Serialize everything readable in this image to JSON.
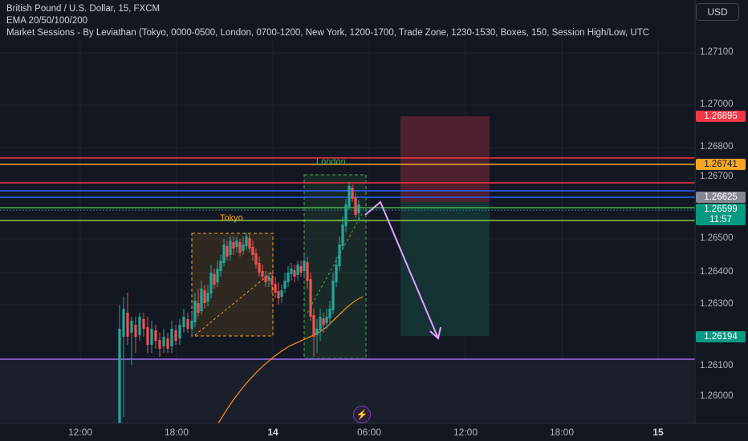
{
  "header": {
    "symbol_line": "British Pound / U.S. Dollar, 15, FXCM",
    "ema_line": "EMA 20/50/100/200",
    "sessions_line": "Market Sessions - By Leviathan (Tokyo, 0000-0500, London, 0700-1200, New York, 1200-1700, Trade Zone, 1230-1530, Boxes, 150, Session High/Low, UTC"
  },
  "currency_button": "USD",
  "price_axis": {
    "ticks": [
      "1.27100",
      "1.27000",
      "1.26800",
      "1.26700",
      "1.26500",
      "1.26400",
      "1.26300",
      "1.26100",
      "1.26000"
    ],
    "labels": [
      {
        "text": "1.26895",
        "bg": "#f23645",
        "fg": "#ffffff"
      },
      {
        "text": "1.26741",
        "bg": "#f5a623",
        "fg": "#131722"
      },
      {
        "text": "1.26625",
        "bg": "#868993",
        "fg": "#ffffff"
      },
      {
        "text": "1.26599",
        "bg": "#089981",
        "fg": "#ffffff"
      },
      {
        "text": "11:57",
        "bg": "#089981",
        "fg": "#ffffff"
      },
      {
        "text": "1.26194",
        "bg": "#089981",
        "fg": "#ffffff"
      }
    ]
  },
  "time_axis": {
    "ticks": [
      {
        "label": "12:00",
        "bold": false
      },
      {
        "label": "18:00",
        "bold": false
      },
      {
        "label": "14",
        "bold": true
      },
      {
        "label": "06:00",
        "bold": false
      },
      {
        "label": "12:00",
        "bold": false
      },
      {
        "label": "18:00",
        "bold": false
      },
      {
        "label": "15",
        "bold": true
      }
    ]
  },
  "sessions": {
    "tokyo_label": "Tokyo",
    "london_label": "London"
  },
  "colors": {
    "background": "#131722",
    "bull": "#26a69a",
    "bear": "#ef5350",
    "ema": "#f7931a",
    "tokyo": "#f5a623",
    "london": "#4caf50",
    "arrow": "#e1a3ff",
    "support": "#7e57c2"
  },
  "icons": {
    "logo": "tradingview-replay-icon"
  }
}
